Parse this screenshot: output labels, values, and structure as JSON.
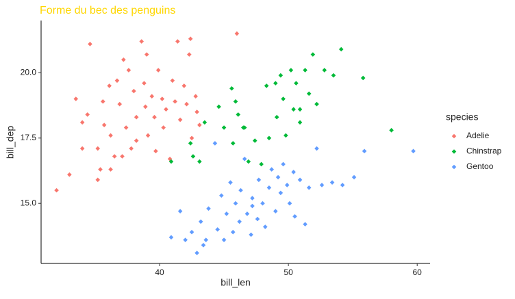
{
  "chart_data": {
    "type": "scatter",
    "title": "Forme du bec des penguins",
    "x_label": "bill_len",
    "y_label": "bill_dep",
    "legend_title": "species",
    "legend_position": "right",
    "xlim": [
      30.8,
      61.0
    ],
    "ylim": [
      12.7,
      22.0
    ],
    "xticks": [
      40,
      50,
      60
    ],
    "yticks": [
      {
        "value": 15.0,
        "label": "15.0"
      },
      {
        "value": 17.5,
        "label": "17.5"
      },
      {
        "value": 20.0,
        "label": "20.0"
      }
    ],
    "series": [
      {
        "name": "Adelie",
        "color": "#F8766D",
        "x": [
          32.0,
          33.0,
          33.5,
          34.6,
          34.0,
          34.4,
          34.0,
          35.2,
          35.4,
          35.2,
          35.6,
          35.7,
          36.1,
          36.2,
          36.5,
          36.7,
          36.9,
          37.2,
          37.4,
          37.6,
          37.8,
          38.0,
          38.2,
          38.6,
          38.8,
          38.9,
          39.0,
          39.1,
          39.4,
          39.6,
          39.7,
          39.9,
          40.2,
          40.3,
          40.5,
          40.8,
          41.0,
          41.2,
          41.4,
          41.6,
          41.9,
          42.1,
          42.3,
          42.5,
          42.8,
          42.9,
          43.1,
          42.4,
          46.0,
          36.2,
          38.2,
          37.1
        ],
        "values": [
          15.5,
          16.1,
          19.0,
          21.1,
          18.1,
          18.4,
          17.1,
          17.1,
          16.3,
          15.9,
          18.9,
          18.0,
          19.5,
          17.6,
          16.8,
          19.7,
          18.8,
          20.5,
          17.9,
          20.1,
          17.1,
          19.3,
          18.3,
          21.2,
          19.6,
          18.7,
          20.7,
          17.6,
          19.1,
          18.3,
          17.0,
          20.1,
          19.0,
          17.9,
          18.6,
          16.7,
          19.7,
          18.9,
          21.2,
          18.2,
          19.5,
          18.8,
          20.7,
          17.5,
          19.1,
          18.5,
          18.0,
          21.3,
          21.5,
          16.3,
          17.4,
          16.8
        ]
      },
      {
        "name": "Chinstrap",
        "color": "#00BA38",
        "x": [
          40.9,
          42.4,
          42.6,
          43.1,
          43.5,
          44.6,
          45.0,
          45.6,
          45.7,
          45.9,
          46.1,
          46.5,
          46.6,
          46.9,
          47.4,
          47.9,
          48.3,
          48.5,
          49.0,
          49.1,
          49.4,
          49.6,
          49.8,
          50.2,
          50.4,
          50.6,
          50.9,
          51.3,
          51.6,
          51.9,
          52.2,
          52.8,
          53.5,
          54.1,
          55.8,
          58.0,
          50.9
        ],
        "values": [
          16.6,
          17.3,
          16.8,
          16.6,
          18.1,
          18.7,
          17.9,
          19.4,
          17.3,
          18.9,
          18.4,
          17.9,
          17.9,
          16.6,
          17.4,
          16.5,
          19.5,
          17.5,
          19.6,
          18.3,
          19.9,
          19.0,
          17.6,
          20.1,
          18.6,
          19.6,
          18.1,
          20.1,
          19.2,
          20.7,
          18.8,
          20.1,
          19.9,
          20.9,
          19.8,
          17.8,
          18.6
        ]
      },
      {
        "name": "Gentoo",
        "color": "#619CFF",
        "x": [
          40.9,
          41.6,
          42.0,
          42.5,
          42.9,
          43.2,
          43.4,
          43.8,
          44.3,
          44.5,
          44.8,
          45.0,
          45.2,
          45.5,
          45.7,
          45.9,
          46.2,
          46.3,
          46.6,
          46.8,
          47.1,
          47.2,
          47.6,
          47.7,
          48.0,
          48.2,
          48.5,
          48.7,
          49.0,
          49.2,
          49.4,
          49.6,
          49.9,
          50.1,
          50.4,
          50.5,
          50.9,
          51.3,
          51.6,
          52.2,
          52.6,
          53.4,
          54.2,
          55.1,
          55.9,
          59.7,
          47.2,
          43.6
        ],
        "values": [
          13.7,
          14.7,
          13.6,
          13.9,
          13.1,
          14.3,
          13.4,
          14.8,
          17.3,
          14.0,
          15.3,
          13.6,
          14.6,
          15.8,
          13.9,
          15.0,
          14.3,
          15.5,
          16.7,
          14.6,
          13.8,
          15.2,
          14.4,
          15.9,
          15.0,
          14.1,
          15.6,
          16.3,
          14.7,
          16.0,
          15.4,
          16.5,
          15.7,
          15.0,
          16.2,
          14.5,
          15.9,
          14.2,
          15.6,
          17.1,
          15.7,
          15.8,
          15.7,
          16.0,
          17.0,
          17.0,
          14.9,
          13.6
        ]
      }
    ]
  }
}
